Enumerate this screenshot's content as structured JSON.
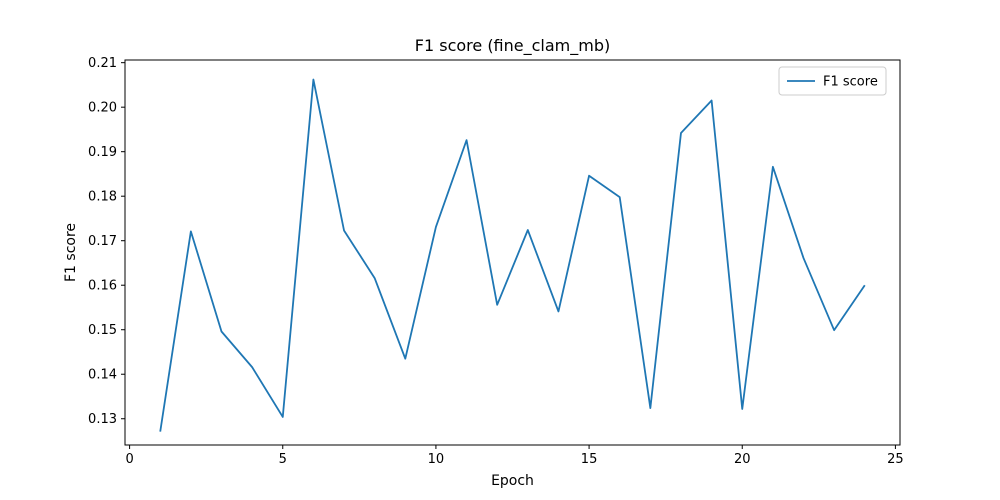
{
  "chart_data": {
    "type": "line",
    "title": "F1 score (fine_clam_mb)",
    "xlabel": "Epoch",
    "ylabel": "F1 score",
    "xlim": [
      -0.15,
      25.15
    ],
    "ylim": [
      0.1241,
      0.2106
    ],
    "xticks": [
      0,
      5,
      10,
      15,
      20,
      25
    ],
    "yticks": [
      0.13,
      0.14,
      0.15,
      0.16,
      0.17,
      0.18,
      0.19,
      0.2,
      0.21
    ],
    "ytick_labels": [
      "0.13",
      "0.14",
      "0.15",
      "0.16",
      "0.17",
      "0.18",
      "0.19",
      "0.20",
      "0.21"
    ],
    "grid": false,
    "legend": "top-right",
    "series": [
      {
        "name": "F1 score",
        "color": "#1f77b4",
        "x": [
          1,
          2,
          3,
          4,
          5,
          6,
          7,
          8,
          9,
          10,
          11,
          12,
          13,
          14,
          15,
          16,
          17,
          18,
          19,
          20,
          21,
          22,
          23,
          24
        ],
        "y": [
          0.1271,
          0.1721,
          0.1496,
          0.1416,
          0.1304,
          0.2062,
          0.1723,
          0.1616,
          0.1435,
          0.1731,
          0.1926,
          0.1556,
          0.1724,
          0.1541,
          0.1846,
          0.1798,
          0.1324,
          0.1942,
          0.2015,
          0.1322,
          0.1866,
          0.1661,
          0.1499,
          0.16
        ]
      }
    ]
  }
}
